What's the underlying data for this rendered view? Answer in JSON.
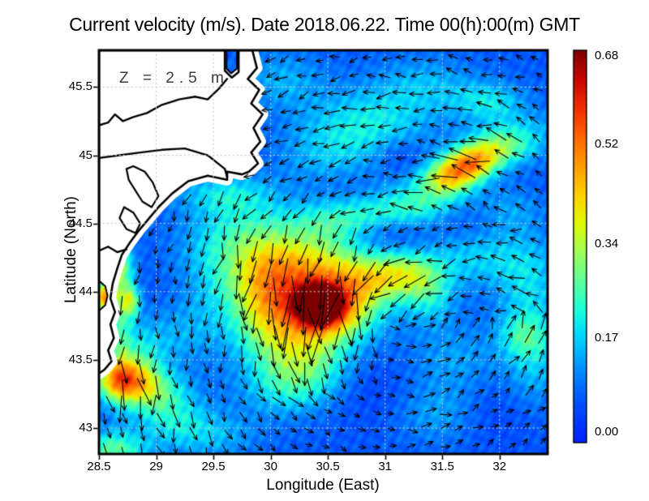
{
  "title": "Current velocity (m/s). Date 2018.06.22. Time 00(h):00(m) GMT",
  "annotation": "Z = 2.5 m",
  "axes": {
    "x": {
      "label": "Longitude (East)",
      "min": 28.5,
      "max": 32.42,
      "ticks": [
        28.5,
        29,
        29.5,
        30,
        30.5,
        31,
        31.5,
        32
      ],
      "tick_labels": [
        "28.5",
        "29",
        "29.5",
        "30",
        "30.5",
        "31",
        "31.5",
        "32"
      ]
    },
    "y": {
      "label": "Latitude (North)",
      "min": 42.81,
      "max": 45.77,
      "ticks": [
        43,
        43.5,
        44,
        44.5,
        45,
        45.5
      ],
      "tick_labels": [
        "43",
        "43.5",
        "44",
        "44.5",
        "45",
        "45.5"
      ]
    }
  },
  "colorbar": {
    "min": 0.0,
    "max": 0.68,
    "units": "m/s",
    "tick_labels": [
      "0.68",
      "0.52",
      "0.34",
      "0.17",
      "0.00"
    ],
    "tick_values": [
      0.68,
      0.52,
      0.34,
      0.17,
      0.0
    ],
    "colormap": [
      [
        0.0,
        "#0020ff"
      ],
      [
        0.1,
        "#0050ff"
      ],
      [
        0.19,
        "#0090ff"
      ],
      [
        0.27,
        "#00d4ff"
      ],
      [
        0.34,
        "#1fffd7"
      ],
      [
        0.42,
        "#64ff93"
      ],
      [
        0.49,
        "#a4ff54"
      ],
      [
        0.56,
        "#e2f800"
      ],
      [
        0.63,
        "#ffd000"
      ],
      [
        0.7,
        "#ffa000"
      ],
      [
        0.78,
        "#ff6400"
      ],
      [
        0.85,
        "#f03000"
      ],
      [
        0.92,
        "#cc0800"
      ],
      [
        1.0,
        "#7c0000"
      ]
    ]
  },
  "chart_data": {
    "type": "heatmap",
    "subtype": "vector_field_heatmap",
    "title": "Current velocity (m/s). Date 2018.06.22. Time 00(h):00(m) GMT",
    "xlabel": "Longitude (East)",
    "ylabel": "Latitude (North)",
    "xlim": [
      28.5,
      32.42
    ],
    "ylim": [
      42.81,
      45.77
    ],
    "zlim": [
      0.0,
      0.68
    ],
    "depth_annotation": "Z = 2.5 m",
    "grid": "dotted 0.5 degree",
    "field": {
      "base": 0.075,
      "noise_amp": 0.02,
      "blobs": [
        [
          30.42,
          43.9,
          0.14,
          0.1,
          0.5
        ],
        [
          30.38,
          44.02,
          0.3,
          0.2,
          0.22
        ],
        [
          30.18,
          43.72,
          0.32,
          0.22,
          0.18
        ],
        [
          30.62,
          43.86,
          0.26,
          0.15,
          0.2
        ],
        [
          30.05,
          44.18,
          0.26,
          0.2,
          0.14
        ],
        [
          30.48,
          44.28,
          0.3,
          0.16,
          0.13
        ],
        [
          29.95,
          43.95,
          0.2,
          0.24,
          0.15
        ],
        [
          30.32,
          43.48,
          0.28,
          0.18,
          0.14
        ],
        [
          30.12,
          43.28,
          0.28,
          0.14,
          0.09
        ],
        [
          29.75,
          44.42,
          0.32,
          0.22,
          0.11
        ],
        [
          29.58,
          44.1,
          0.28,
          0.28,
          0.09
        ],
        [
          30.85,
          44.08,
          0.24,
          0.12,
          0.18
        ],
        [
          31.18,
          44.14,
          0.22,
          0.12,
          0.2
        ],
        [
          31.38,
          43.97,
          0.16,
          0.14,
          0.12
        ],
        [
          31.55,
          44.84,
          0.16,
          0.085,
          0.26
        ],
        [
          31.74,
          44.94,
          0.16,
          0.085,
          0.33
        ],
        [
          31.95,
          45.05,
          0.2,
          0.09,
          0.2
        ],
        [
          31.38,
          44.7,
          0.26,
          0.12,
          0.12
        ],
        [
          32.18,
          45.16,
          0.26,
          0.12,
          0.1
        ],
        [
          31.9,
          45.4,
          0.22,
          0.1,
          0.12
        ],
        [
          30.9,
          45.25,
          0.36,
          0.18,
          0.12
        ],
        [
          30.5,
          45.0,
          0.3,
          0.2,
          0.09
        ],
        [
          31.35,
          45.52,
          0.3,
          0.15,
          0.08
        ],
        [
          30.1,
          45.55,
          0.26,
          0.15,
          0.08
        ],
        [
          31.05,
          44.6,
          0.38,
          0.1,
          0.11
        ],
        [
          29.6,
          44.72,
          0.3,
          0.1,
          0.1
        ],
        [
          31.8,
          44.25,
          0.3,
          0.14,
          0.1
        ],
        [
          32.25,
          44.05,
          0.2,
          0.25,
          0.11
        ],
        [
          32.3,
          43.45,
          0.18,
          0.22,
          0.09
        ],
        [
          31.6,
          43.5,
          0.3,
          0.2,
          0.07
        ],
        [
          32.22,
          43.68,
          0.16,
          0.12,
          0.12
        ],
        [
          31.45,
          43.1,
          0.25,
          0.15,
          0.07
        ],
        [
          32.1,
          44.6,
          0.2,
          0.12,
          0.06
        ],
        [
          30.55,
          44.52,
          0.3,
          0.1,
          0.1
        ],
        [
          28.55,
          43.96,
          0.06,
          0.08,
          0.4
        ],
        [
          28.78,
          43.93,
          0.06,
          0.08,
          0.22
        ],
        [
          28.68,
          43.9,
          0.07,
          0.4,
          0.16
        ],
        [
          28.7,
          44.18,
          0.08,
          0.12,
          0.12
        ],
        [
          28.7,
          43.36,
          0.18,
          0.11,
          0.38
        ],
        [
          28.96,
          43.28,
          0.2,
          0.11,
          0.16
        ],
        [
          29.12,
          43.1,
          0.24,
          0.13,
          0.11
        ],
        [
          29.45,
          42.95,
          0.3,
          0.12,
          0.09
        ],
        [
          28.6,
          42.84,
          0.22,
          0.1,
          0.2
        ],
        [
          28.85,
          43.58,
          0.15,
          0.14,
          0.11
        ],
        [
          29.2,
          43.72,
          0.22,
          0.2,
          0.07
        ],
        [
          31.0,
          44.44,
          0.24,
          0.1,
          -0.045
        ],
        [
          31.62,
          44.56,
          0.2,
          0.1,
          -0.045
        ],
        [
          30.85,
          43.32,
          0.3,
          0.2,
          -0.035
        ],
        [
          31.95,
          43.15,
          0.3,
          0.2,
          -0.03
        ],
        [
          31.12,
          45.0,
          0.14,
          0.09,
          -0.05
        ],
        [
          30.6,
          44.78,
          0.28,
          0.12,
          -0.03
        ],
        [
          29.15,
          43.95,
          0.2,
          0.15,
          -0.03
        ]
      ]
    },
    "arrows": {
      "lon_start": 28.56,
      "lon_step": 0.146,
      "cols": 27,
      "lat_start": 42.87,
      "lat_step": 0.1235,
      "rows": 24,
      "gyre_center": [
        31.2,
        43.95
      ],
      "length_scale": 62,
      "length_min": 5
    },
    "coast": {
      "land": [
        [
          28.5,
          45.77
        ],
        [
          29.6,
          45.77
        ],
        [
          29.6,
          45.62
        ],
        [
          29.66,
          45.57
        ],
        [
          29.72,
          45.61
        ],
        [
          29.72,
          45.77
        ],
        [
          29.84,
          45.77
        ],
        [
          29.88,
          45.64
        ],
        [
          29.8,
          45.56
        ],
        [
          29.9,
          45.48
        ],
        [
          29.83,
          45.38
        ],
        [
          29.93,
          45.3
        ],
        [
          29.85,
          45.2
        ],
        [
          29.91,
          45.1
        ],
        [
          29.83,
          45.02
        ],
        [
          29.89,
          44.94
        ],
        [
          29.81,
          44.88
        ],
        [
          29.75,
          44.86
        ],
        [
          29.62,
          44.88
        ],
        [
          29.62,
          44.82
        ],
        [
          29.45,
          44.85
        ],
        [
          29.28,
          44.81
        ],
        [
          29.14,
          44.72
        ],
        [
          29.02,
          44.62
        ],
        [
          28.93,
          44.53
        ],
        [
          28.85,
          44.45
        ],
        [
          28.77,
          44.36
        ],
        [
          28.7,
          44.27
        ],
        [
          28.66,
          44.17
        ],
        [
          28.62,
          44.06
        ],
        [
          28.6,
          43.95
        ],
        [
          28.64,
          43.85
        ],
        [
          28.6,
          43.76
        ],
        [
          28.63,
          43.66
        ],
        [
          28.58,
          43.57
        ],
        [
          28.61,
          43.49
        ],
        [
          28.55,
          43.43
        ],
        [
          28.5,
          43.4
        ]
      ],
      "rivers": [
        [
          [
            28.5,
            45.22
          ],
          [
            28.58,
            45.24
          ],
          [
            28.64,
            45.3
          ],
          [
            28.71,
            45.25
          ],
          [
            28.8,
            45.28
          ],
          [
            28.92,
            45.31
          ],
          [
            29.05,
            45.37
          ],
          [
            29.2,
            45.41
          ],
          [
            29.34,
            45.43
          ],
          [
            29.45,
            45.41
          ],
          [
            29.55,
            45.49
          ],
          [
            29.62,
            45.56
          ]
        ],
        [
          [
            28.5,
            44.98
          ],
          [
            28.68,
            45.0
          ],
          [
            28.86,
            45.02
          ],
          [
            29.05,
            45.04
          ],
          [
            29.25,
            45.05
          ],
          [
            29.45,
            45.0
          ],
          [
            29.6,
            44.9
          ],
          [
            29.62,
            44.84
          ]
        ],
        [
          [
            28.5,
            44.3
          ],
          [
            28.58,
            44.33
          ],
          [
            28.66,
            44.29
          ],
          [
            28.74,
            44.31
          ]
        ]
      ],
      "lakes": [
        [
          [
            28.8,
            44.92
          ],
          [
            28.9,
            44.88
          ],
          [
            28.97,
            44.8
          ],
          [
            29.02,
            44.7
          ],
          [
            28.96,
            44.62
          ],
          [
            28.88,
            44.66
          ],
          [
            28.82,
            44.74
          ],
          [
            28.76,
            44.82
          ],
          [
            28.74,
            44.9
          ]
        ],
        [
          [
            28.72,
            44.62
          ],
          [
            28.8,
            44.58
          ],
          [
            28.86,
            44.5
          ],
          [
            28.82,
            44.43
          ],
          [
            28.74,
            44.46
          ],
          [
            28.68,
            44.54
          ]
        ]
      ],
      "water_patches": [
        [
          [
            28.5,
            44.08
          ],
          [
            28.555,
            44.04
          ],
          [
            28.575,
            43.97
          ],
          [
            28.555,
            43.9
          ],
          [
            28.5,
            43.86
          ]
        ],
        [
          [
            29.615,
            45.77
          ],
          [
            29.615,
            45.635
          ],
          [
            29.655,
            45.6
          ],
          [
            29.705,
            45.635
          ],
          [
            29.705,
            45.77
          ]
        ]
      ]
    }
  }
}
